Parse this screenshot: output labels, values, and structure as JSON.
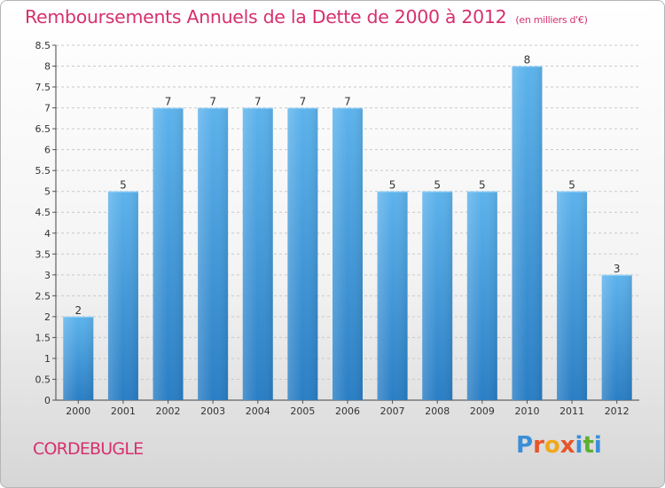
{
  "header": {
    "title": "Remboursements Annuels de la Dette de 2000 à 2012",
    "subtitle": "(en milliers d'€)"
  },
  "footer": {
    "place": "CORDEBUGLE",
    "logo_text": "Proxiti"
  },
  "colors": {
    "accent": "#d6306e",
    "bar_top": "#5db3ec",
    "bar_bottom": "#2a7ec4",
    "logo_letters": [
      "#3a8fd8",
      "#e8552a",
      "#f0a81a",
      "#e8552a",
      "#3a8fd8",
      "#5cb030",
      "#3a8fd8"
    ]
  },
  "chart_data": {
    "type": "bar",
    "title": "Remboursements Annuels de la Dette de 2000 à 2012",
    "subtitle": "(en milliers d'€)",
    "xlabel": "",
    "ylabel": "",
    "categories": [
      "2000",
      "2001",
      "2002",
      "2003",
      "2004",
      "2005",
      "2006",
      "2007",
      "2008",
      "2009",
      "2010",
      "2011",
      "2012"
    ],
    "values": [
      2,
      5,
      7,
      7,
      7,
      7,
      7,
      5,
      5,
      5,
      8,
      5,
      3
    ],
    "value_labels": [
      "2",
      "5",
      "7",
      "7",
      "7",
      "7",
      "7",
      "5",
      "5",
      "5",
      "8",
      "5",
      "3"
    ],
    "ylim": [
      0,
      8.5
    ],
    "yticks": [
      0,
      0.5,
      1,
      1.5,
      2,
      2.5,
      3,
      3.5,
      4,
      4.5,
      5,
      5.5,
      6,
      6.5,
      7,
      7.5,
      8,
      8.5
    ],
    "ytick_labels": [
      "0",
      "0.5",
      "1",
      "1.5",
      "2",
      "2.5",
      "3",
      "3.5",
      "4",
      "4.5",
      "5",
      "5.5",
      "6",
      "6.5",
      "7",
      "7.5",
      "8",
      "8.5"
    ],
    "grid": "horizontal dashed",
    "legend": "none"
  }
}
